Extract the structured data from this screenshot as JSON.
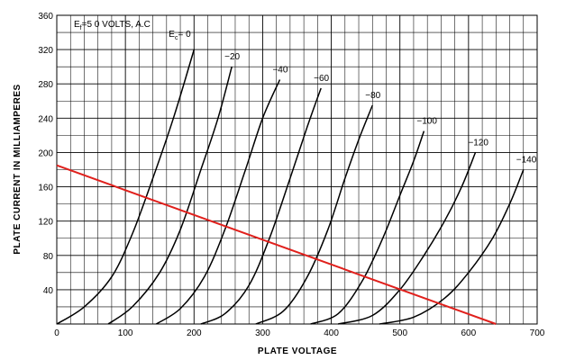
{
  "chart_data": {
    "type": "line",
    "title": "",
    "xlabel": "PLATE VOLTAGE",
    "ylabel": "PLATE CURRENT IN MILLIAMPERES",
    "xlim": [
      0,
      700
    ],
    "ylim": [
      0,
      360
    ],
    "x_ticks": [
      "0",
      "100",
      "200",
      "300",
      "400",
      "500",
      "600",
      "700"
    ],
    "y_ticks": [
      "40",
      "80",
      "120",
      "160",
      "200",
      "240",
      "280",
      "320",
      "360"
    ],
    "grid": true,
    "annotations": {
      "filament_prefix": "E",
      "filament_sub": "f",
      "filament_rest": "=5 0  VOLTS, A.C",
      "grid_prefix": "E",
      "grid_sub": "c",
      "grid_rest": "= 0"
    },
    "series": [
      {
        "name": "= 0",
        "label_text": "= 0",
        "points": [
          [
            0,
            0
          ],
          [
            40,
            20
          ],
          [
            80,
            55
          ],
          [
            110,
            105
          ],
          [
            140,
            170
          ],
          [
            170,
            240
          ],
          [
            200,
            320
          ]
        ]
      },
      {
        "name": "-20",
        "label_text": "−20",
        "points": [
          [
            75,
            0
          ],
          [
            110,
            20
          ],
          [
            150,
            60
          ],
          [
            180,
            110
          ],
          [
            210,
            180
          ],
          [
            235,
            240
          ],
          [
            255,
            300
          ]
        ]
      },
      {
        "name": "-40",
        "label_text": "−40",
        "points": [
          [
            145,
            0
          ],
          [
            180,
            18
          ],
          [
            215,
            55
          ],
          [
            245,
            110
          ],
          [
            275,
            180
          ],
          [
            300,
            240
          ],
          [
            325,
            285
          ]
        ]
      },
      {
        "name": "-60",
        "label_text": "−60",
        "points": [
          [
            210,
            0
          ],
          [
            245,
            12
          ],
          [
            280,
            45
          ],
          [
            310,
            100
          ],
          [
            340,
            170
          ],
          [
            365,
            230
          ],
          [
            385,
            275
          ]
        ]
      },
      {
        "name": "-80",
        "label_text": "−80",
        "points": [
          [
            290,
            0
          ],
          [
            330,
            15
          ],
          [
            365,
            55
          ],
          [
            395,
            110
          ],
          [
            420,
            170
          ],
          [
            440,
            215
          ],
          [
            460,
            255
          ]
        ]
      },
      {
        "name": "-100",
        "label_text": "−100",
        "points": [
          [
            370,
            0
          ],
          [
            410,
            12
          ],
          [
            445,
            50
          ],
          [
            475,
            100
          ],
          [
            500,
            150
          ],
          [
            520,
            190
          ],
          [
            535,
            225
          ]
        ]
      },
      {
        "name": "-120",
        "label_text": "−120",
        "points": [
          [
            410,
            0
          ],
          [
            460,
            10
          ],
          [
            500,
            40
          ],
          [
            535,
            80
          ],
          [
            565,
            120
          ],
          [
            590,
            160
          ],
          [
            610,
            200
          ]
        ]
      },
      {
        "name": "-140",
        "label_text": "−140",
        "points": [
          [
            470,
            0
          ],
          [
            520,
            8
          ],
          [
            565,
            30
          ],
          [
            600,
            60
          ],
          [
            635,
            100
          ],
          [
            660,
            140
          ],
          [
            680,
            180
          ]
        ]
      }
    ],
    "load_line": {
      "color": "#e0201c",
      "points": [
        [
          0,
          185
        ],
        [
          640,
          0
        ]
      ]
    }
  }
}
